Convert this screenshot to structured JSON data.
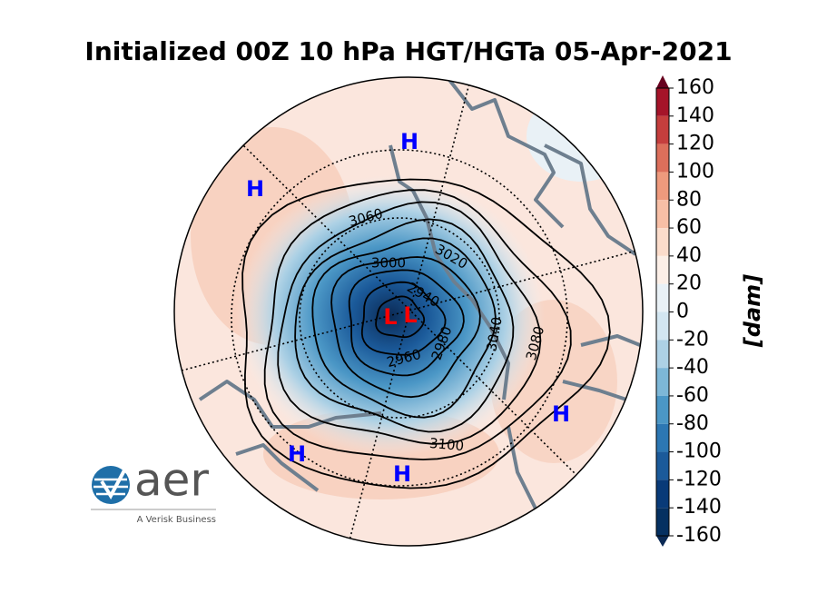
{
  "title": "Initialized 00Z 10 hPa HGT/HGTa 05-Apr-2021",
  "colorbar": {
    "label": "[dam]",
    "ticks": [
      160,
      140,
      120,
      100,
      80,
      60,
      40,
      20,
      0,
      -20,
      -40,
      -60,
      -80,
      -100,
      -120,
      -140,
      -160
    ],
    "colors": [
      "#67001f",
      "#a51429",
      "#c53e3d",
      "#dc6f5b",
      "#ee9a7d",
      "#f7bfa6",
      "#fbdccb",
      "#fcefe7",
      "#e9f1f6",
      "#d3e6f1",
      "#add1e5",
      "#7db7d7",
      "#4b97c6",
      "#2c77b3",
      "#1b5a9a",
      "#093a78",
      "#053061",
      "#0b2a55"
    ]
  },
  "contour_labels": [
    3060,
    3020,
    3000,
    2940,
    2960,
    2980,
    3040,
    3080,
    3100
  ],
  "markers": [
    "H",
    "H",
    "H",
    "H",
    "H",
    "L",
    "L"
  ],
  "logo": {
    "name": "aer",
    "tagline": "A Verisk Business"
  }
}
